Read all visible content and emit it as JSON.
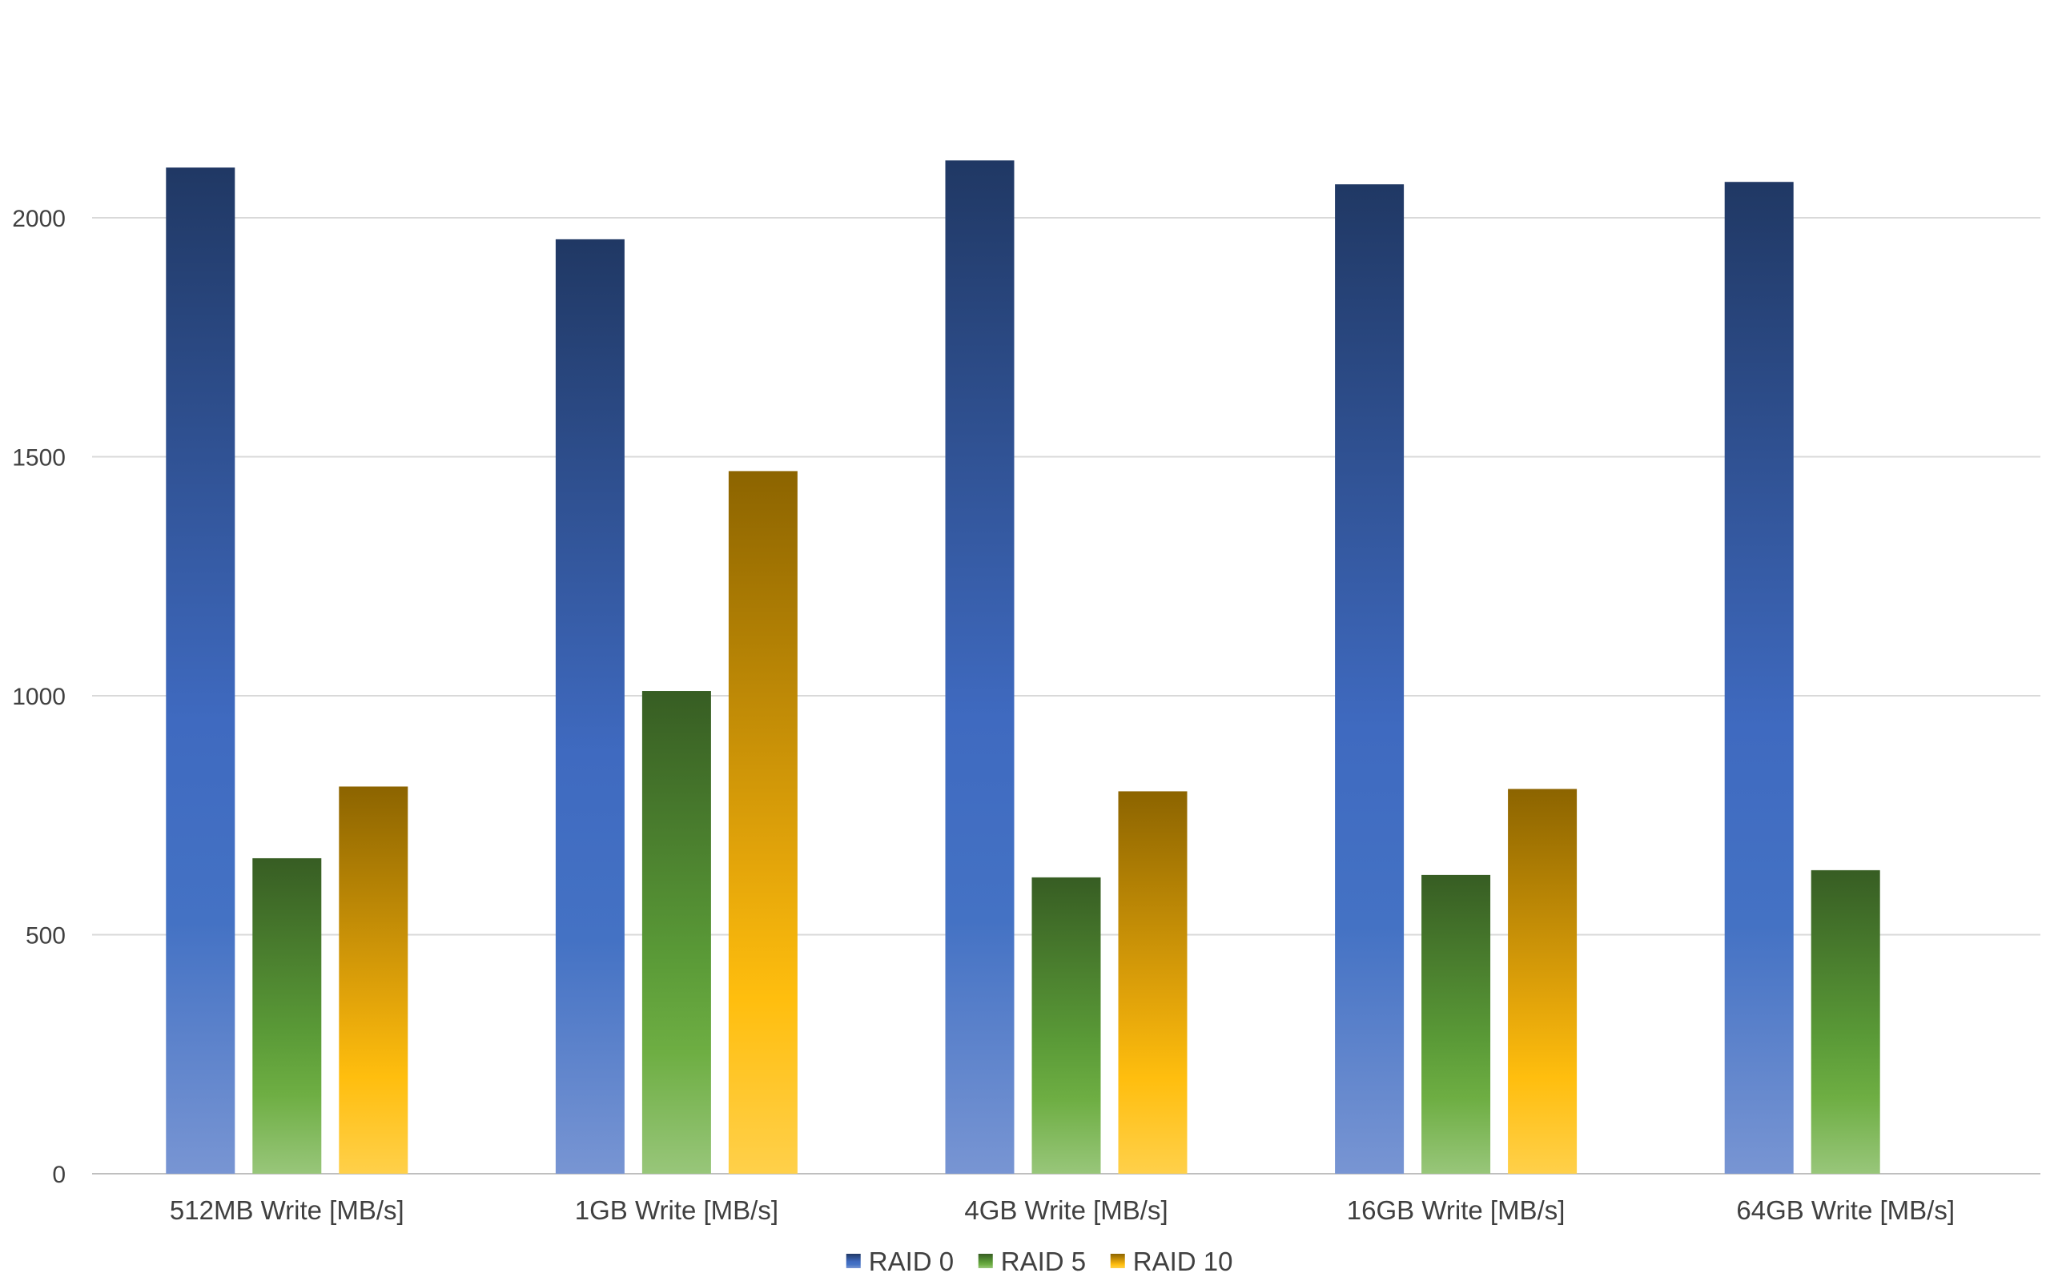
{
  "chart_data": {
    "type": "bar",
    "title": "",
    "xlabel": "",
    "ylabel": "",
    "categories": [
      "512MB Write [MB/s]",
      "1GB Write [MB/s]",
      "4GB Write [MB/s]",
      "16GB Write [MB/s]",
      "64GB Write [MB/s]"
    ],
    "series": [
      {
        "name": "RAID 0",
        "color": "#4472c4",
        "values": [
          2105,
          1955,
          2120,
          2070,
          2075
        ]
      },
      {
        "name": "RAID 5",
        "color": "#70ad47",
        "values": [
          660,
          1010,
          620,
          625,
          635
        ]
      },
      {
        "name": "RAID 10",
        "color": "#ffc000",
        "values": [
          810,
          1470,
          800,
          805,
          null
        ]
      }
    ],
    "ylim": [
      0,
      2200
    ],
    "yticks": [
      0,
      500,
      1000,
      1500,
      2000
    ],
    "grid": true,
    "legend": "bottom"
  }
}
